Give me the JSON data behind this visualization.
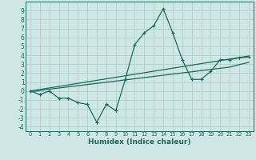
{
  "xlabel": "Humidex (Indice chaleur)",
  "bg_color": "#cfe8e5",
  "grid_color": "#b0d0ce",
  "line_color": "#1a6b5e",
  "x_data": [
    0,
    1,
    2,
    3,
    4,
    5,
    6,
    7,
    8,
    9,
    10,
    11,
    12,
    13,
    14,
    15,
    16,
    17,
    18,
    19,
    20,
    21,
    22,
    23
  ],
  "zigzag_y": [
    0.0,
    -0.4,
    0.0,
    -0.8,
    -0.8,
    -1.3,
    -1.5,
    -3.5,
    -1.5,
    -2.2,
    1.3,
    5.2,
    6.5,
    7.3,
    9.2,
    6.5,
    3.5,
    1.3,
    1.3,
    2.2,
    3.5,
    3.5,
    3.7,
    3.8
  ],
  "line1_y": [
    0.0,
    0.17,
    0.34,
    0.51,
    0.68,
    0.85,
    1.02,
    1.19,
    1.36,
    1.53,
    1.7,
    1.87,
    2.04,
    2.21,
    2.38,
    2.55,
    2.72,
    2.89,
    3.06,
    3.23,
    3.4,
    3.57,
    3.74,
    3.91
  ],
  "line2_y": [
    -0.1,
    0.05,
    0.2,
    0.33,
    0.46,
    0.59,
    0.72,
    0.85,
    0.98,
    1.11,
    1.24,
    1.37,
    1.5,
    1.63,
    1.76,
    1.89,
    2.02,
    2.15,
    2.28,
    2.41,
    2.54,
    2.67,
    2.95,
    3.2
  ],
  "ylim": [
    -4.5,
    10.0
  ],
  "xlim": [
    -0.5,
    23.5
  ],
  "yticks": [
    -4,
    -3,
    -2,
    -1,
    0,
    1,
    2,
    3,
    4,
    5,
    6,
    7,
    8,
    9
  ],
  "xticks": [
    0,
    1,
    2,
    3,
    4,
    5,
    6,
    7,
    8,
    9,
    10,
    11,
    12,
    13,
    14,
    15,
    16,
    17,
    18,
    19,
    20,
    21,
    22,
    23
  ]
}
